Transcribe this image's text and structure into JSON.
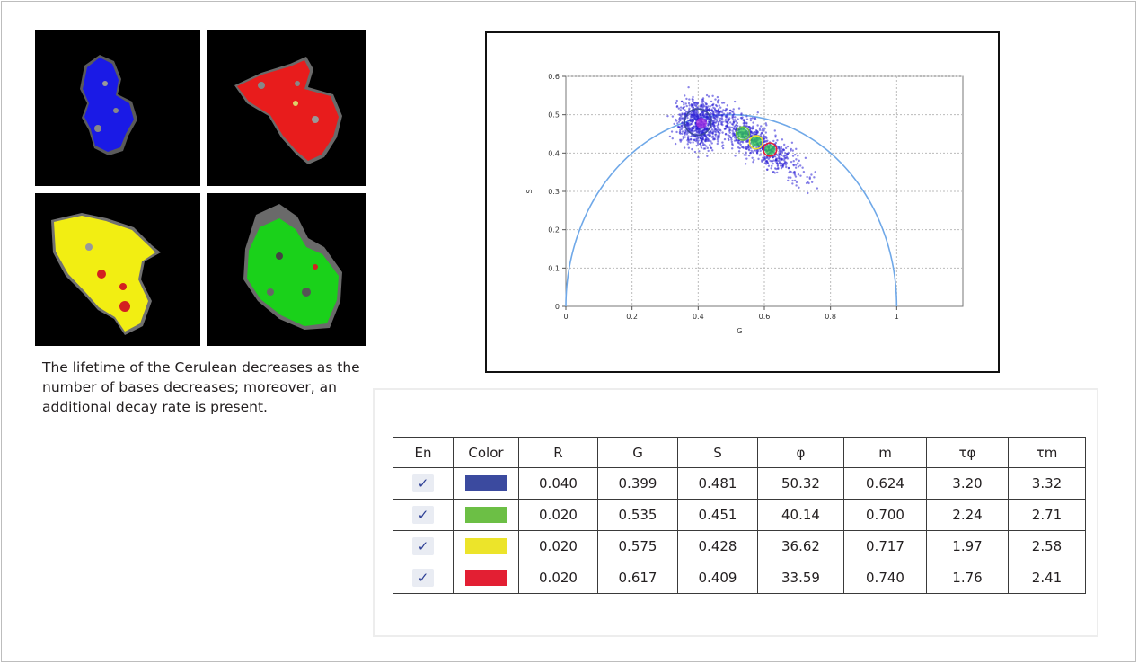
{
  "caption": "The lifetime of the Cerulean decreases as the number of bases decreases; moreover, an additional decay rate is present.",
  "images": [
    {
      "label": "blue",
      "color": "#1a1ae6"
    },
    {
      "label": "red",
      "color": "#e81c1c"
    },
    {
      "label": "yellow",
      "color": "#f2ee12"
    },
    {
      "label": "green",
      "color": "#1ad11a"
    }
  ],
  "table": {
    "headers": [
      "En",
      "Color",
      "R",
      "G",
      "S",
      "φ",
      "m",
      "τφ",
      "τm"
    ],
    "check_mark": "✓",
    "rows": [
      {
        "color": "#3b4a9f",
        "R": "0.040",
        "G": "0.399",
        "S": "0.481",
        "phi": "50.32",
        "m": "0.624",
        "tphi": "3.20",
        "tm": "3.32"
      },
      {
        "color": "#6cbf45",
        "R": "0.020",
        "G": "0.535",
        "S": "0.451",
        "phi": "40.14",
        "m": "0.700",
        "tphi": "2.24",
        "tm": "2.71"
      },
      {
        "color": "#ece42a",
        "R": "0.020",
        "G": "0.575",
        "S": "0.428",
        "phi": "36.62",
        "m": "0.717",
        "tphi": "1.97",
        "tm": "2.58"
      },
      {
        "color": "#e31f33",
        "R": "0.020",
        "G": "0.617",
        "S": "0.409",
        "phi": "33.59",
        "m": "0.740",
        "tphi": "1.76",
        "tm": "2.41"
      }
    ]
  },
  "chart_data": {
    "type": "scatter",
    "xlabel": "G",
    "ylabel": "S",
    "xlim": [
      0,
      1.2
    ],
    "ylim": [
      0,
      0.6
    ],
    "xticks": [
      "0",
      "0.2",
      "0.4",
      "0.6",
      "0.8",
      "1"
    ],
    "yticks": [
      "0",
      "0.1",
      "0.2",
      "0.3",
      "0.4",
      "0.5",
      "0.6"
    ],
    "grid": true,
    "universal_circle": {
      "center": [
        0.5,
        0
      ],
      "radius": 0.5,
      "color": "#6fa8e8"
    },
    "cursors": [
      {
        "G": 0.399,
        "S": 0.481,
        "R": 0.04,
        "color": "#3b4a9f"
      },
      {
        "G": 0.535,
        "S": 0.451,
        "R": 0.02,
        "color": "#6cbf45"
      },
      {
        "G": 0.575,
        "S": 0.428,
        "R": 0.02,
        "color": "#ece42a"
      },
      {
        "G": 0.617,
        "S": 0.409,
        "R": 0.02,
        "color": "#e31f33"
      }
    ],
    "clusters": [
      {
        "center": [
          0.41,
          0.478
        ],
        "spread": [
          0.035,
          0.03
        ],
        "color": "#2a1fd6"
      },
      {
        "center": [
          0.575,
          0.43
        ],
        "spread": [
          0.07,
          0.025
        ],
        "color": "#2a1fd6"
      }
    ]
  }
}
